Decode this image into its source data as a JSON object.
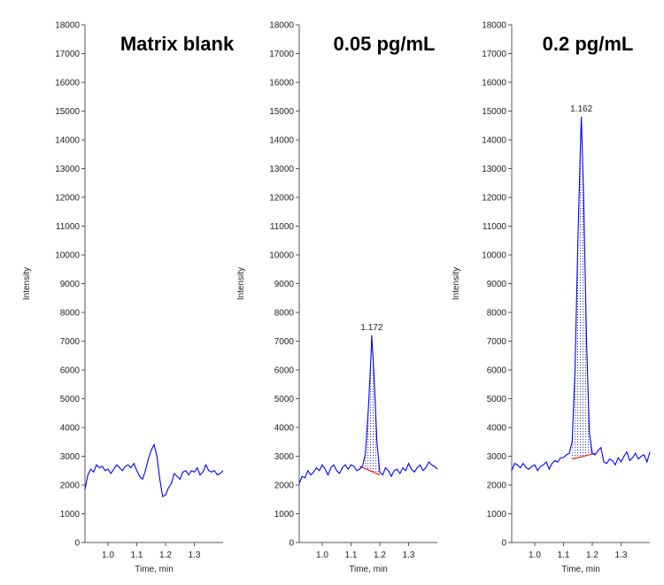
{
  "chart_data": [
    {
      "type": "line",
      "title": "Matrix blank",
      "xlabel": "Time, min",
      "ylabel": "Intensity",
      "xlim": [
        0.92,
        1.4
      ],
      "ylim": [
        0,
        18000
      ],
      "xticks": [
        "1.0",
        "1.1",
        "1.2",
        "1.3"
      ],
      "yticks": [
        "0",
        "1000",
        "2000",
        "3000",
        "4000",
        "5000",
        "6000",
        "7000",
        "8000",
        "9000",
        "10000",
        "11000",
        "12000",
        "13000",
        "14000",
        "15000",
        "16000",
        "17000",
        "18000"
      ],
      "series": [
        {
          "color": "#0000ff",
          "x": [
            0.92,
            0.93,
            0.94,
            0.95,
            0.96,
            0.97,
            0.98,
            0.99,
            1.0,
            1.01,
            1.02,
            1.03,
            1.04,
            1.05,
            1.06,
            1.07,
            1.08,
            1.09,
            1.1,
            1.11,
            1.12,
            1.13,
            1.14,
            1.15,
            1.16,
            1.17,
            1.18,
            1.19,
            1.2,
            1.21,
            1.22,
            1.23,
            1.24,
            1.25,
            1.26,
            1.27,
            1.28,
            1.29,
            1.3,
            1.31,
            1.32,
            1.33,
            1.34,
            1.35,
            1.36,
            1.37,
            1.38,
            1.39,
            1.4
          ],
          "y": [
            1850,
            2350,
            2550,
            2450,
            2700,
            2600,
            2650,
            2500,
            2550,
            2400,
            2550,
            2700,
            2600,
            2500,
            2650,
            2700,
            2600,
            2750,
            2500,
            2300,
            2200,
            2500,
            2900,
            3200,
            3400,
            3000,
            2200,
            1600,
            1650,
            1900,
            2050,
            2400,
            2300,
            2200,
            2450,
            2500,
            2350,
            2500,
            2450,
            2600,
            2350,
            2450,
            2700,
            2500,
            2450,
            2500,
            2350,
            2400,
            2500
          ]
        }
      ],
      "peaks": []
    },
    {
      "type": "line",
      "title": "0.05 pg/mL",
      "xlabel": "Time, min",
      "ylabel": "Intensity",
      "xlim": [
        0.92,
        1.4
      ],
      "ylim": [
        0,
        18000
      ],
      "xticks": [
        "1.0",
        "1.1",
        "1.2",
        "1.3"
      ],
      "yticks": [
        "0",
        "1000",
        "2000",
        "3000",
        "4000",
        "5000",
        "6000",
        "7000",
        "8000",
        "9000",
        "10000",
        "11000",
        "12000",
        "13000",
        "14000",
        "15000",
        "16000",
        "17000",
        "18000"
      ],
      "series": [
        {
          "color": "#0000ff",
          "x": [
            0.92,
            0.93,
            0.94,
            0.95,
            0.96,
            0.97,
            0.98,
            0.99,
            1.0,
            1.01,
            1.02,
            1.03,
            1.04,
            1.05,
            1.06,
            1.07,
            1.08,
            1.09,
            1.1,
            1.11,
            1.12,
            1.13,
            1.14,
            1.15,
            1.16,
            1.17,
            1.172,
            1.18,
            1.19,
            1.2,
            1.21,
            1.22,
            1.23,
            1.24,
            1.25,
            1.26,
            1.27,
            1.28,
            1.29,
            1.3,
            1.31,
            1.32,
            1.33,
            1.34,
            1.35,
            1.36,
            1.37,
            1.38,
            1.39,
            1.4
          ],
          "y": [
            2050,
            2300,
            2250,
            2500,
            2350,
            2450,
            2600,
            2500,
            2700,
            2550,
            2350,
            2600,
            2700,
            2500,
            2400,
            2600,
            2700,
            2550,
            2700,
            2650,
            2500,
            2550,
            2650,
            3100,
            4600,
            6600,
            7200,
            5800,
            3500,
            2450,
            2350,
            2600,
            2500,
            2300,
            2500,
            2550,
            2400,
            2600,
            2500,
            2750,
            2550,
            2450,
            2600,
            2700,
            2500,
            2600,
            2800,
            2700,
            2650,
            2550
          ],
          "peak_fill": {
            "x_start": 1.13,
            "x_end": 1.2,
            "baseline": [
              2650,
              2350
            ]
          }
        }
      ],
      "peaks": [
        {
          "x": 1.172,
          "y": 7200,
          "label": "1.172"
        }
      ]
    },
    {
      "type": "line",
      "title": "0.2 pg/mL",
      "xlabel": "Time, min",
      "ylabel": "Intensity",
      "xlim": [
        0.92,
        1.4
      ],
      "ylim": [
        0,
        18000
      ],
      "xticks": [
        "1.0",
        "1.1",
        "1.2",
        "1.3"
      ],
      "yticks": [
        "0",
        "1000",
        "2000",
        "3000",
        "4000",
        "5000",
        "6000",
        "7000",
        "8000",
        "9000",
        "10000",
        "11000",
        "12000",
        "13000",
        "14000",
        "15000",
        "16000",
        "17000",
        "18000"
      ],
      "series": [
        {
          "color": "#0000ff",
          "x": [
            0.92,
            0.93,
            0.94,
            0.95,
            0.96,
            0.97,
            0.98,
            0.99,
            1.0,
            1.01,
            1.02,
            1.03,
            1.04,
            1.05,
            1.06,
            1.07,
            1.08,
            1.09,
            1.1,
            1.11,
            1.12,
            1.13,
            1.14,
            1.15,
            1.16,
            1.162,
            1.17,
            1.18,
            1.19,
            1.2,
            1.21,
            1.22,
            1.23,
            1.24,
            1.25,
            1.26,
            1.27,
            1.28,
            1.29,
            1.3,
            1.31,
            1.32,
            1.33,
            1.34,
            1.35,
            1.36,
            1.37,
            1.38,
            1.39,
            1.4
          ],
          "y": [
            2500,
            2750,
            2700,
            2600,
            2750,
            2600,
            2550,
            2650,
            2700,
            2500,
            2650,
            2700,
            2800,
            2550,
            2750,
            2850,
            2800,
            2950,
            2950,
            3050,
            3100,
            3500,
            6000,
            10500,
            14200,
            14800,
            12000,
            7000,
            3800,
            3100,
            3050,
            3200,
            3300,
            2800,
            2750,
            2900,
            2850,
            2700,
            2950,
            2800,
            3000,
            3150,
            2850,
            2950,
            3100,
            2900,
            3000,
            3050,
            2800,
            3150
          ],
          "peak_fill": {
            "x_start": 1.13,
            "x_end": 1.21,
            "baseline": [
              2900,
              3100
            ]
          }
        }
      ],
      "peaks": [
        {
          "x": 1.162,
          "y": 14800,
          "label": "1.162"
        }
      ]
    }
  ]
}
